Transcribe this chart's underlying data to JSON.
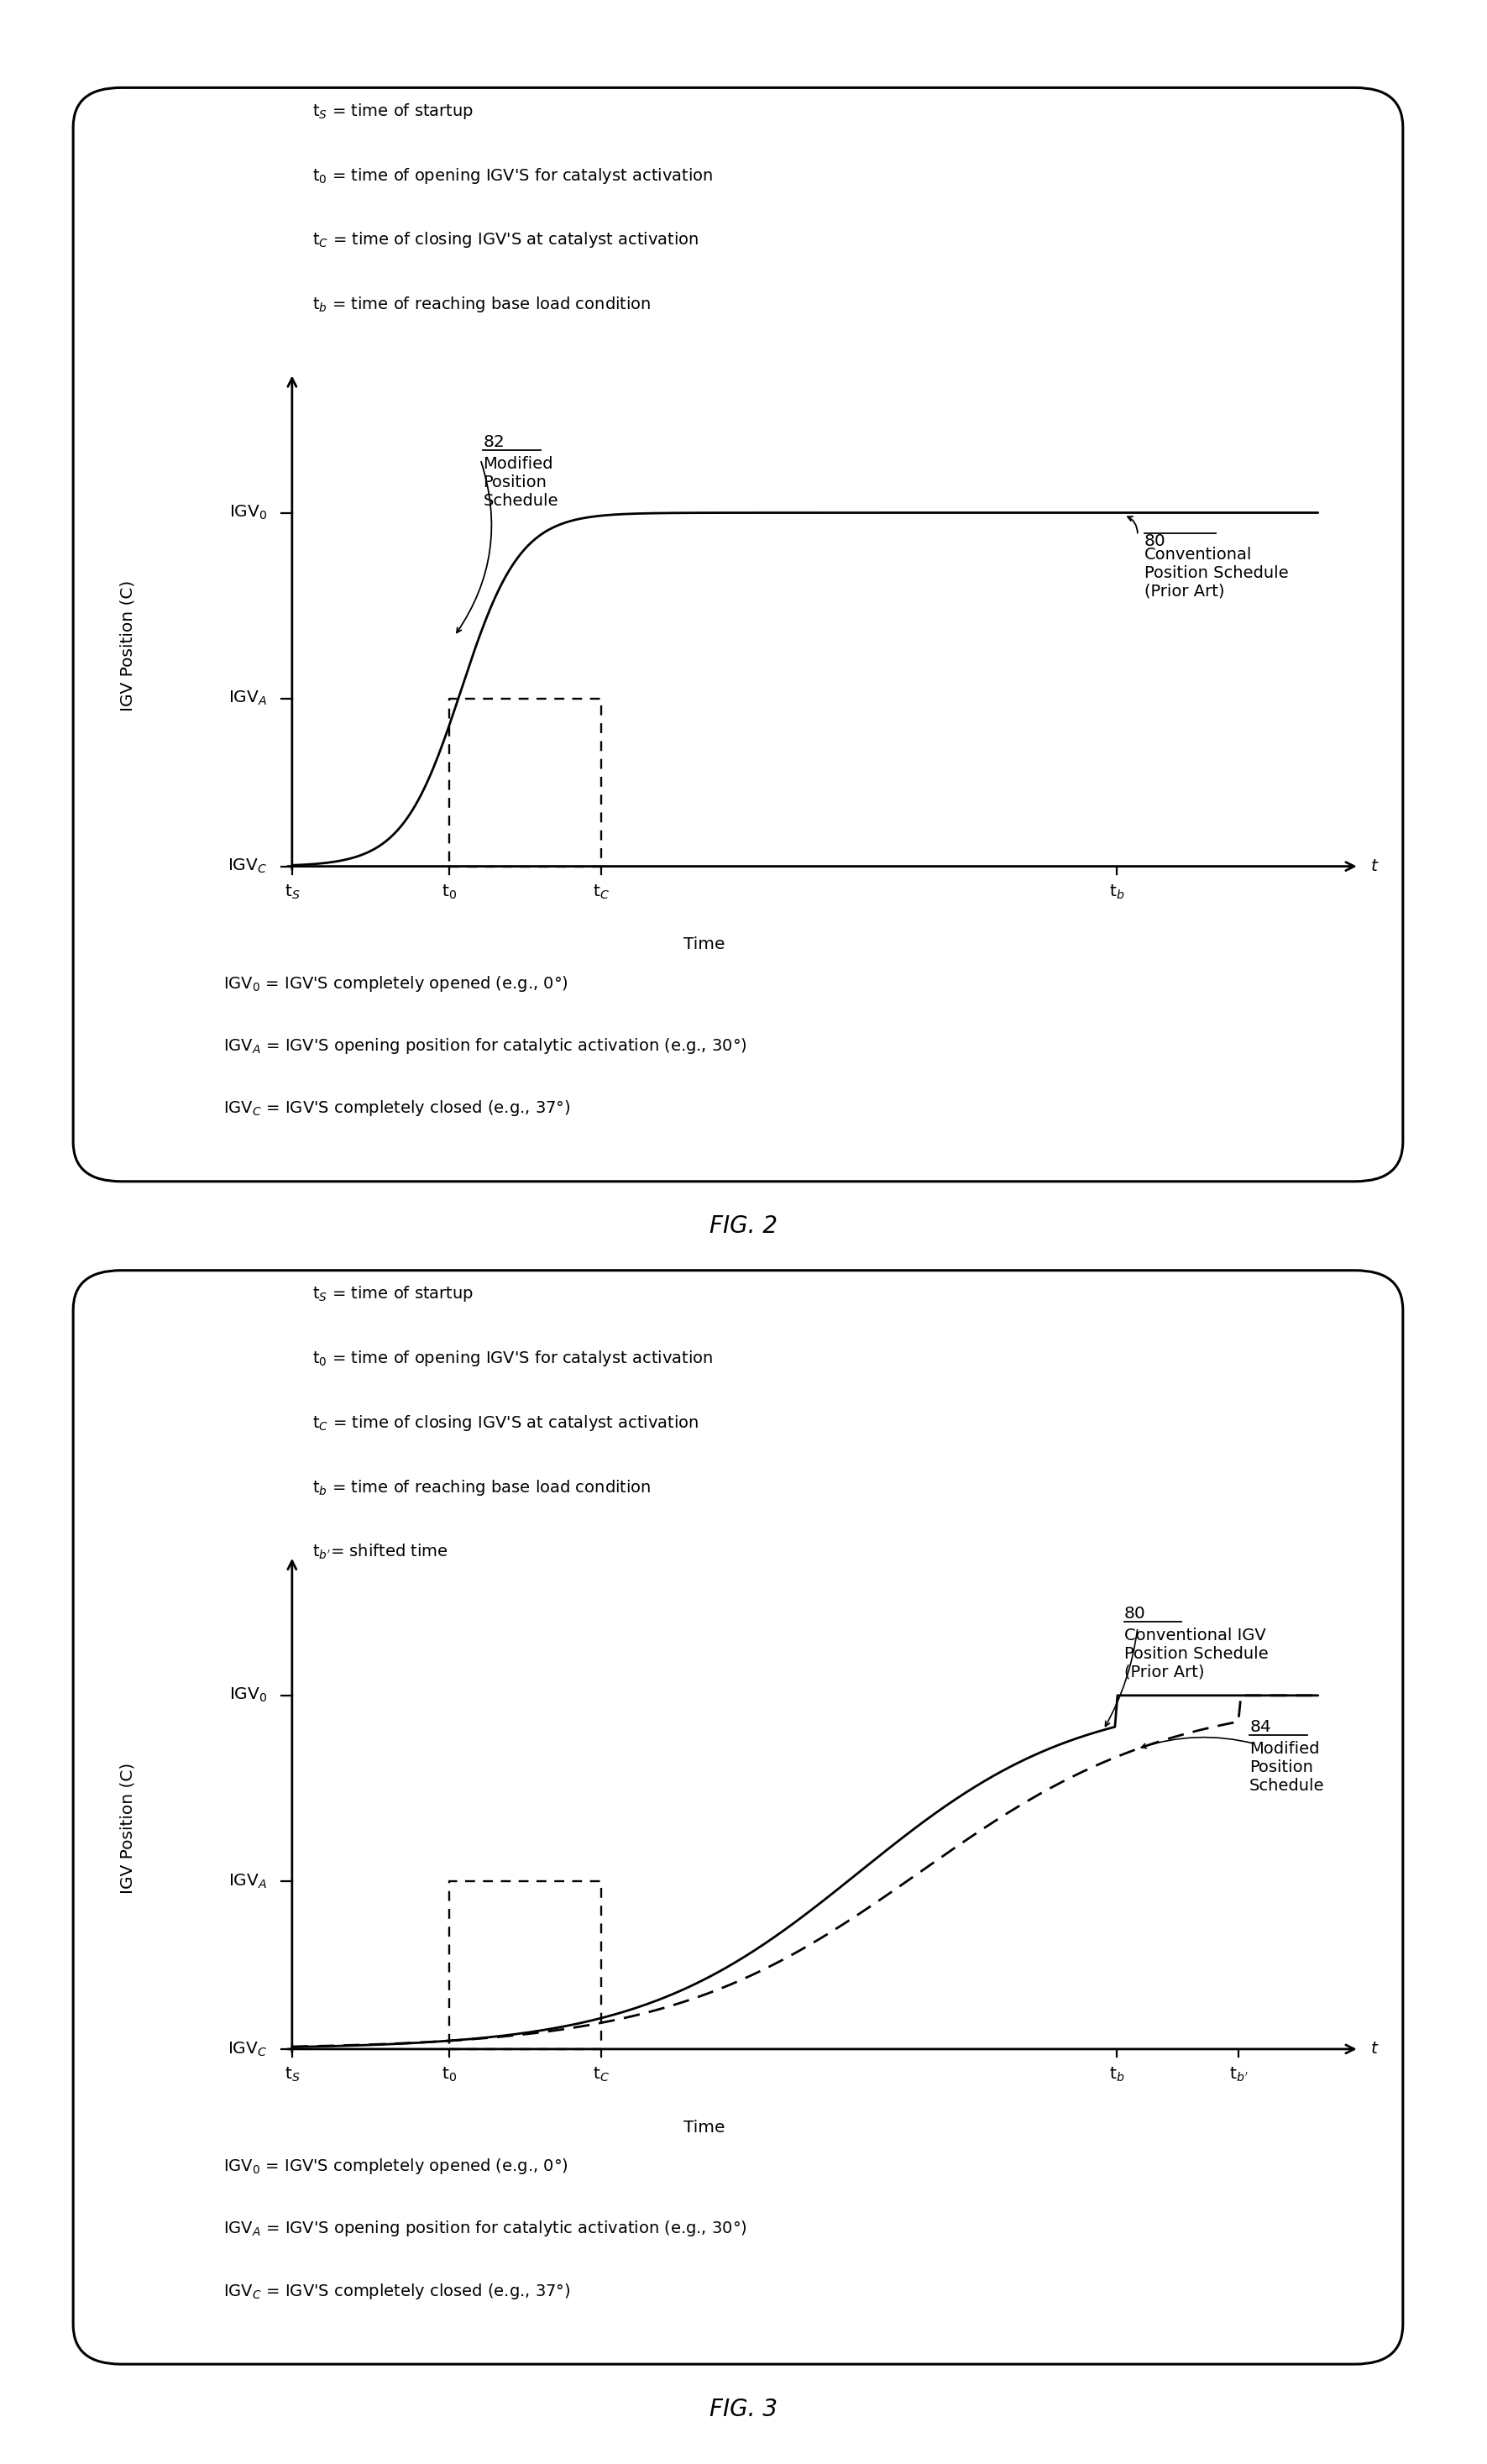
{
  "fig2": {
    "legend_lines": [
      "t$_S$ = time of startup",
      "t$_0$ = time of opening IGV'S for catalyst activation",
      "t$_C$ = time of closing IGV'S at catalyst activation",
      "t$_b$ = time of reaching base load condition"
    ],
    "ylabel": "IGV Position (C)",
    "xlabel": "Time",
    "ytick_labels": [
      "IGV$_C$",
      "IGV$_A$",
      "IGV$_0$"
    ],
    "xtick_labels": [
      "t$_S$",
      "t$_0$",
      "t$_C$",
      "t$_b$"
    ],
    "label80_lines": [
      "80",
      "Conventional",
      "Position Schedule",
      "(Prior Art)"
    ],
    "label82_lines": [
      "82",
      "Modified",
      "Position",
      "Schedule"
    ],
    "footnote_lines": [
      "IGV$_0$ = IGV'S completely opened (e.g., 0°)",
      "IGV$_A$ = IGV'S opening position for catalytic activation (e.g., 30°)",
      "IGV$_C$ = IGV'S completely closed (e.g., 37°)"
    ],
    "fig_label": "FIG. 2"
  },
  "fig3": {
    "legend_lines": [
      "t$_S$ = time of startup",
      "t$_0$ = time of opening IGV'S for catalyst activation",
      "t$_C$ = time of closing IGV'S at catalyst activation",
      "t$_b$ = time of reaching base load condition",
      "t$_{b'}$= shifted time"
    ],
    "ylabel": "IGV Position (C)",
    "xlabel": "Time",
    "ytick_labels": [
      "IGV$_C$",
      "IGV$_A$",
      "IGV$_0$"
    ],
    "xtick_labels": [
      "t$_S$",
      "t$_0$",
      "t$_C$",
      "t$_b$",
      "t$_{b'}$"
    ],
    "label80_lines": [
      "80",
      "Conventional IGV",
      "Position Schedule",
      "(Prior Art)"
    ],
    "label84_lines": [
      "84",
      "Modified",
      "Position",
      "Schedule"
    ],
    "footnote_lines": [
      "IGV$_0$ = IGV'S completely opened (e.g., 0°)",
      "IGV$_A$ = IGV'S opening position for catalytic activation (e.g., 30°)",
      "IGV$_C$ = IGV'S completely closed (e.g., 37°)"
    ],
    "fig_label": "FIG. 3"
  },
  "bg_color": "#ffffff",
  "line_color": "#000000",
  "font_size": 14.5,
  "fig_label_font_size": 20,
  "lw": 2.0
}
